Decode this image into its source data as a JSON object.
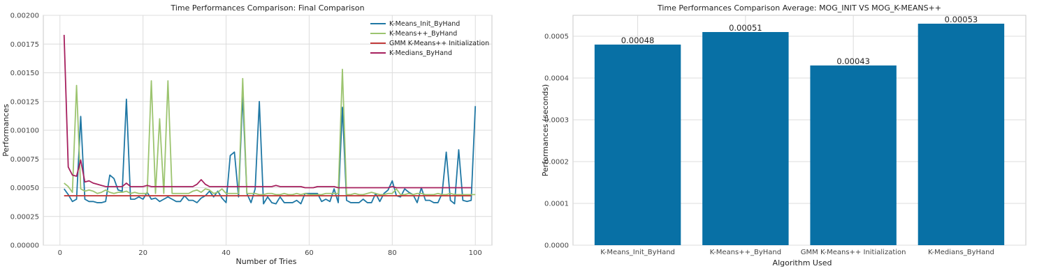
{
  "chart_data": [
    {
      "type": "line",
      "title": "Time Performances Comparison: Final Comparison",
      "xlabel": "Number of Tries",
      "ylabel": "Performances",
      "xlim": [
        -4,
        104
      ],
      "ylim": [
        0,
        0.002
      ],
      "xticks": [
        "0",
        "20",
        "40",
        "60",
        "80",
        "100"
      ],
      "yticks": [
        "0.00000",
        "0.00025",
        "0.00050",
        "0.00075",
        "0.00100",
        "0.00125",
        "0.00150",
        "0.00175",
        "0.00200"
      ],
      "grid": true,
      "legend_position": "top-right",
      "series": [
        {
          "name": "K-Means_Init_ByHand",
          "color": "#1f77a4",
          "x_start": 1,
          "values": [
            0.00049,
            0.00044,
            0.00038,
            0.0004,
            0.00112,
            0.0004,
            0.00038,
            0.00038,
            0.00037,
            0.00037,
            0.00038,
            0.00061,
            0.00058,
            0.00048,
            0.00047,
            0.00127,
            0.0004,
            0.0004,
            0.00042,
            0.0004,
            0.00046,
            0.0004,
            0.00041,
            0.00038,
            0.0004,
            0.00042,
            0.0004,
            0.00038,
            0.00038,
            0.00043,
            0.00039,
            0.00039,
            0.00037,
            0.00041,
            0.00043,
            0.00047,
            0.00042,
            0.00047,
            0.00041,
            0.00037,
            0.00078,
            0.00081,
            0.00042,
            0.00131,
            0.00045,
            0.00037,
            0.00049,
            0.00125,
            0.00036,
            0.00042,
            0.00037,
            0.00036,
            0.00042,
            0.00037,
            0.00037,
            0.00037,
            0.00039,
            0.00036,
            0.00045,
            0.00045,
            0.00045,
            0.00045,
            0.00038,
            0.0004,
            0.00038,
            0.00049,
            0.00037,
            0.0012,
            0.00039,
            0.00037,
            0.00037,
            0.00037,
            0.0004,
            0.00037,
            0.00037,
            0.00045,
            0.00038,
            0.00045,
            0.00048,
            0.00056,
            0.00043,
            0.00042,
            0.00049,
            0.00046,
            0.00044,
            0.00037,
            0.0005,
            0.00039,
            0.00039,
            0.00037,
            0.00037,
            0.00045,
            0.00081,
            0.00039,
            0.00036,
            0.00083,
            0.00039,
            0.00038,
            0.00039,
            0.00121
          ]
        },
        {
          "name": "K-Means++_ByHand",
          "color": "#9cc46f",
          "x_start": 1,
          "values": [
            0.00054,
            0.00051,
            0.00046,
            0.00139,
            0.00049,
            0.00047,
            0.00048,
            0.00047,
            0.00045,
            0.00046,
            0.00048,
            0.00046,
            0.00045,
            0.00046,
            0.00046,
            0.00047,
            0.00045,
            0.00046,
            0.00045,
            0.00045,
            0.00045,
            0.00143,
            0.00045,
            0.0011,
            0.00045,
            0.00143,
            0.00045,
            0.00045,
            0.00045,
            0.00045,
            0.00045,
            0.00047,
            0.00048,
            0.00046,
            0.00049,
            0.00048,
            0.00045,
            0.00046,
            0.00049,
            0.00045,
            0.00045,
            0.00045,
            0.00045,
            0.00145,
            0.00045,
            0.00045,
            0.00045,
            0.00044,
            0.00044,
            0.00045,
            0.00045,
            0.00044,
            0.00044,
            0.00045,
            0.00044,
            0.00044,
            0.00045,
            0.00044,
            0.00045,
            0.00044,
            0.00044,
            0.00044,
            0.00044,
            0.00045,
            0.00045,
            0.00045,
            0.00045,
            0.00153,
            0.00044,
            0.00044,
            0.00045,
            0.00044,
            0.00044,
            0.00045,
            0.00046,
            0.00045,
            0.00044,
            0.00044,
            0.00045,
            0.00045,
            0.00049,
            0.00044,
            0.00044,
            0.00045,
            0.00044,
            0.00045,
            0.00045,
            0.00044,
            0.00044,
            0.00044,
            0.00045,
            0.00044,
            0.00044,
            0.00045,
            0.00044,
            0.00044,
            0.00044,
            0.00044,
            0.00044,
            0.00044
          ]
        },
        {
          "name": "GMM K-Means++ Initialization",
          "color": "#c23a3a",
          "x_start": 1,
          "constant": 0.00043,
          "count": 99
        },
        {
          "name": "K-Medians_ByHand",
          "color": "#a6205e",
          "x_start": 1,
          "values": [
            0.00183,
            0.00068,
            0.00061,
            0.0006,
            0.00074,
            0.00055,
            0.00056,
            0.00054,
            0.00053,
            0.00052,
            0.00051,
            0.00051,
            0.00051,
            0.00051,
            0.00051,
            0.00054,
            0.00051,
            0.00051,
            0.00051,
            0.00051,
            0.00052,
            0.00051,
            0.00051,
            0.00051,
            0.00051,
            0.00051,
            0.00051,
            0.00051,
            0.00051,
            0.00051,
            0.00051,
            0.00051,
            0.00053,
            0.00057,
            0.00053,
            0.00051,
            0.00051,
            0.00051,
            0.00051,
            0.00051,
            0.00051,
            0.00051,
            0.00051,
            0.00051,
            0.00051,
            0.00051,
            0.00051,
            0.00051,
            0.00051,
            0.00051,
            0.00051,
            0.00052,
            0.00051,
            0.00051,
            0.00051,
            0.00051,
            0.00051,
            0.00051,
            0.0005,
            0.0005,
            0.0005,
            0.00051,
            0.00051,
            0.00051,
            0.00051,
            0.00051,
            0.0005,
            0.0005,
            0.0005,
            0.0005,
            0.0005,
            0.0005,
            0.0005,
            0.0005,
            0.0005,
            0.0005,
            0.0005,
            0.0005,
            0.0005,
            0.00051,
            0.0005,
            0.0005,
            0.0005,
            0.0005,
            0.0005,
            0.0005,
            0.0005,
            0.0005,
            0.0005,
            0.0005,
            0.0005,
            0.0005,
            0.0005,
            0.0005,
            0.0005,
            0.0005,
            0.0005,
            0.0005,
            0.0005
          ]
        }
      ]
    },
    {
      "type": "bar",
      "title": "Time Performances Comparison Average: MOG_INIT VS MOG_K-MEANS++",
      "xlabel": "Algorithm Used",
      "ylabel": "Performances (seconds)",
      "ylim": [
        0,
        0.00055
      ],
      "yticks": [
        "0.0000",
        "0.0001",
        "0.0002",
        "0.0003",
        "0.0004",
        "0.0005"
      ],
      "grid": true,
      "color": "#0870a5",
      "categories": [
        "K-Means_Init_ByHand",
        "K-Means++_ByHand",
        "GMM K-Means++ Initialization",
        "K-Medians_ByHand"
      ],
      "values": [
        0.00048,
        0.00051,
        0.00043,
        0.00053
      ],
      "data_labels": [
        "0.00048",
        "0.00051",
        "0.00043",
        "0.00053"
      ]
    }
  ]
}
